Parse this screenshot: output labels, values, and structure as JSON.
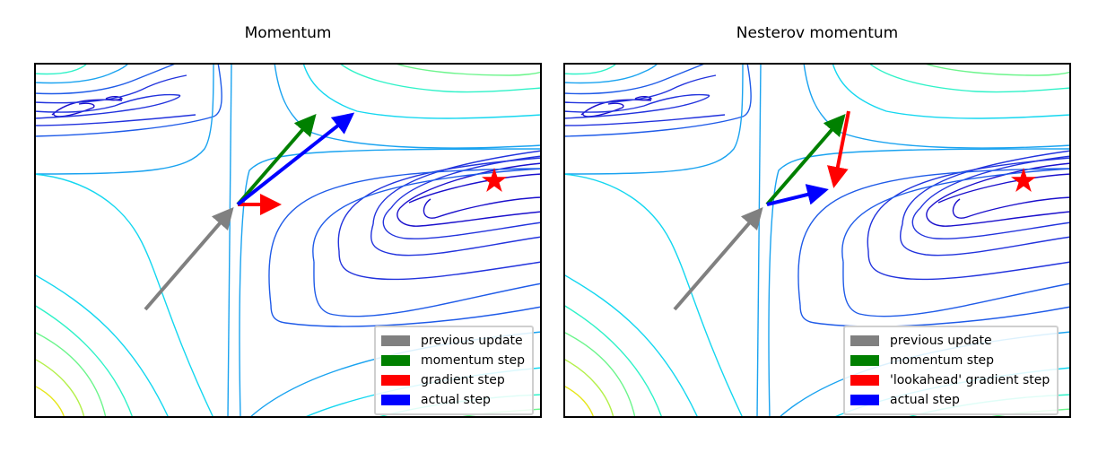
{
  "panels": [
    {
      "title": "Momentum",
      "legend": [
        {
          "label": "previous update",
          "color": "#808080"
        },
        {
          "label": "momentum step",
          "color": "#008000"
        },
        {
          "label": "gradient step",
          "color": "#ff0000"
        },
        {
          "label": "actual step",
          "color": "#0000ff"
        }
      ]
    },
    {
      "title": "Nesterov momentum",
      "legend": [
        {
          "label": "previous update",
          "color": "#808080"
        },
        {
          "label": "momentum step",
          "color": "#008000"
        },
        {
          "label": "'lookahead' gradient step",
          "color": "#ff0000"
        },
        {
          "label": "actual step",
          "color": "#0000ff"
        }
      ]
    }
  ],
  "colors": {
    "contour_levels": [
      "#1a0fcc",
      "#2233dd",
      "#1f5be8",
      "#1aa3f0",
      "#14d7f0",
      "#2ff2c8",
      "#6cf58c",
      "#b4f04a",
      "#e6e61a"
    ],
    "minimum_marker": "#ff0000"
  }
}
